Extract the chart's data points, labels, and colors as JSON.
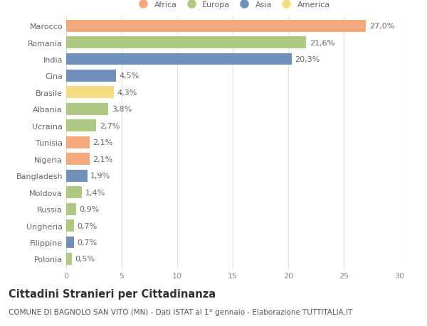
{
  "countries": [
    "Marocco",
    "Romania",
    "India",
    "Cina",
    "Brasile",
    "Albania",
    "Ucraina",
    "Tunisia",
    "Nigeria",
    "Bangladesh",
    "Moldova",
    "Russia",
    "Ungheria",
    "Filippine",
    "Polonia"
  ],
  "values": [
    27.0,
    21.6,
    20.3,
    4.5,
    4.3,
    3.8,
    2.7,
    2.1,
    2.1,
    1.9,
    1.4,
    0.9,
    0.7,
    0.7,
    0.5
  ],
  "labels": [
    "27,0%",
    "21,6%",
    "20,3%",
    "4,5%",
    "4,3%",
    "3,8%",
    "2,7%",
    "2,1%",
    "2,1%",
    "1,9%",
    "1,4%",
    "0,9%",
    "0,7%",
    "0,7%",
    "0,5%"
  ],
  "continents": [
    "Africa",
    "Europa",
    "Asia",
    "Asia",
    "America",
    "Europa",
    "Europa",
    "Africa",
    "Africa",
    "Asia",
    "Europa",
    "Europa",
    "Europa",
    "Asia",
    "Europa"
  ],
  "colors": {
    "Africa": "#F5A87A",
    "Europa": "#AECA82",
    "Asia": "#7090BC",
    "America": "#F5DC80"
  },
  "legend_order": [
    "Africa",
    "Europa",
    "Asia",
    "America"
  ],
  "xlim": [
    0,
    30
  ],
  "xticks": [
    0,
    5,
    10,
    15,
    20,
    25,
    30
  ],
  "title": "Cittadini Stranieri per Cittadinanza",
  "subtitle": "COMUNE DI BAGNOLO SAN VITO (MN) - Dati ISTAT al 1° gennaio - Elaborazione TUTTITALIA.IT",
  "background_color": "#ffffff",
  "grid_color": "#e0e0e0",
  "bar_height": 0.72,
  "label_fontsize": 8.0,
  "tick_fontsize": 8.0,
  "title_fontsize": 10.5,
  "subtitle_fontsize": 7.5
}
